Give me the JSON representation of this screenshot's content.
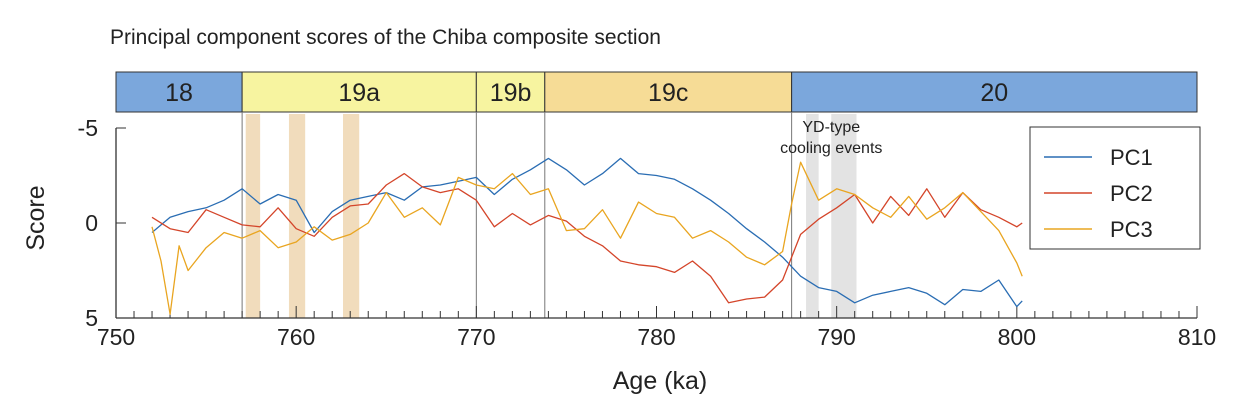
{
  "chart_data": {
    "type": "line",
    "title": "Principal component scores of the Chiba composite section",
    "xlabel": "Age (ka)",
    "ylabel": "Score",
    "xlim": [
      750,
      810
    ],
    "ylim": [
      5,
      -5
    ],
    "y_inverted": true,
    "xticks": [
      "750",
      "760",
      "770",
      "780",
      "790",
      "800",
      "810"
    ],
    "yticks": [
      "-5",
      "0",
      "5"
    ],
    "stages": [
      {
        "label": "18",
        "from": 750,
        "to": 757,
        "color": "#7ba7dc"
      },
      {
        "label": "19a",
        "from": 757,
        "to": 770,
        "color": "#f7f4a0"
      },
      {
        "label": "19b",
        "from": 770,
        "to": 773.8,
        "color": "#f7f4a0"
      },
      {
        "label": "19c",
        "from": 773.8,
        "to": 787.5,
        "color": "#f6dc96"
      },
      {
        "label": "20",
        "from": 787.5,
        "to": 810,
        "color": "#7ba7dc"
      }
    ],
    "shaded_bands": [
      {
        "from": 757.2,
        "to": 758.0,
        "color": "#f1dcbc"
      },
      {
        "from": 759.6,
        "to": 760.5,
        "color": "#f1dcbc"
      },
      {
        "from": 762.6,
        "to": 763.5,
        "color": "#f1dcbc"
      },
      {
        "from": 788.3,
        "to": 789.0,
        "color": "#e3e3e3"
      },
      {
        "from": 789.7,
        "to": 791.1,
        "color": "#e3e3e3"
      }
    ],
    "annotation": [
      "YD-type",
      "cooling events"
    ],
    "legend_position": "right",
    "series": [
      {
        "name": "PC1",
        "color": "#2a6db3",
        "x": [
          752,
          753,
          754,
          755,
          756,
          757,
          758,
          759,
          760,
          761,
          762,
          763,
          764,
          765,
          766,
          767,
          768,
          769,
          770,
          771,
          772,
          773,
          774,
          775,
          776,
          777,
          778,
          779,
          780,
          781,
          782,
          783,
          784,
          785,
          786,
          787,
          788,
          789,
          790,
          791,
          792,
          793,
          794,
          795,
          796,
          797,
          798,
          799,
          800,
          800.3
        ],
        "y": [
          0.5,
          -0.3,
          -0.6,
          -0.8,
          -1.2,
          -1.8,
          -1.0,
          -1.5,
          -1.2,
          0.5,
          -0.6,
          -1.2,
          -1.4,
          -1.6,
          -1.2,
          -1.9,
          -2.0,
          -2.2,
          -2.4,
          -1.5,
          -2.3,
          -2.8,
          -3.4,
          -2.8,
          -2.0,
          -2.6,
          -3.4,
          -2.6,
          -2.5,
          -2.3,
          -1.8,
          -1.2,
          -0.5,
          0.3,
          1.0,
          1.8,
          2.8,
          3.4,
          3.6,
          4.2,
          3.8,
          3.6,
          3.4,
          3.7,
          4.3,
          3.5,
          3.6,
          3.0,
          4.4,
          4.1
        ]
      },
      {
        "name": "PC2",
        "color": "#d4452a",
        "x": [
          752,
          753,
          754,
          755,
          756,
          757,
          758,
          759,
          760,
          761,
          762,
          763,
          764,
          765,
          766,
          767,
          768,
          769,
          770,
          771,
          772,
          773,
          774,
          775,
          776,
          777,
          778,
          779,
          780,
          781,
          782,
          783,
          784,
          785,
          786,
          787,
          788,
          789,
          790,
          791,
          792,
          793,
          794,
          795,
          796,
          797,
          798,
          799,
          800,
          800.3
        ],
        "y": [
          -0.3,
          0.3,
          0.5,
          -0.7,
          -0.3,
          0.1,
          0.2,
          -0.8,
          0.3,
          0.7,
          -0.3,
          -0.9,
          -1.0,
          -2.0,
          -2.6,
          -1.9,
          -1.6,
          -1.8,
          -1.2,
          0.2,
          -0.5,
          0.1,
          -0.4,
          -0.1,
          0.7,
          1.2,
          2.0,
          2.2,
          2.3,
          2.6,
          2.0,
          2.8,
          4.2,
          4.0,
          3.9,
          3.0,
          0.6,
          -0.2,
          -0.8,
          -1.5,
          0.0,
          -1.4,
          -0.4,
          -1.8,
          -0.3,
          -1.6,
          -0.7,
          -0.3,
          0.2,
          0.0
        ]
      },
      {
        "name": "PC3",
        "color": "#e9a520",
        "x": [
          752,
          752.5,
          753,
          753.5,
          754,
          755,
          756,
          757,
          758,
          759,
          760,
          761,
          762,
          763,
          764,
          765,
          766,
          767,
          768,
          769,
          770,
          771,
          772,
          773,
          774,
          775,
          776,
          777,
          778,
          779,
          780,
          781,
          782,
          783,
          784,
          785,
          786,
          787,
          787.5,
          788,
          789,
          790,
          791,
          792,
          793,
          794,
          795,
          796,
          797,
          798,
          799,
          800,
          800.3
        ],
        "y": [
          0.2,
          2.0,
          4.8,
          1.2,
          2.5,
          1.3,
          0.5,
          0.8,
          0.4,
          1.3,
          1.0,
          0.2,
          0.9,
          0.6,
          0.0,
          -1.6,
          -0.3,
          -0.8,
          0.1,
          -2.4,
          -2.0,
          -1.8,
          -2.6,
          -1.5,
          -1.8,
          0.4,
          0.3,
          -0.7,
          0.8,
          -1.1,
          -0.5,
          -0.3,
          0.8,
          0.4,
          1.0,
          1.8,
          2.2,
          1.5,
          -1.0,
          -3.2,
          -1.2,
          -1.8,
          -1.5,
          -0.8,
          -0.3,
          -1.4,
          -0.2,
          -0.8,
          -1.6,
          -0.6,
          0.4,
          2.1,
          2.8
        ]
      }
    ]
  }
}
